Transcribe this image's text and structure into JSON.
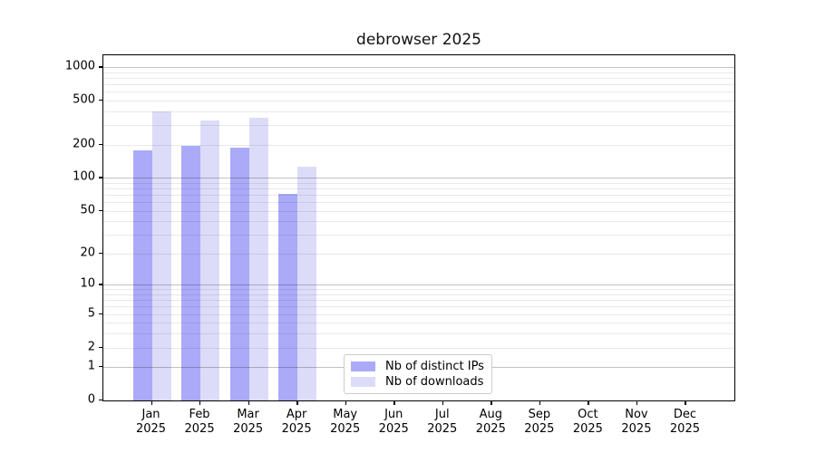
{
  "chart_data": {
    "type": "bar",
    "title": "debrowser 2025",
    "scale": "log10(value+1)",
    "categories": [
      "Jan",
      "Feb",
      "Mar",
      "Apr",
      "May",
      "Jun",
      "Jul",
      "Aug",
      "Sep",
      "Oct",
      "Nov",
      "Dec"
    ],
    "year_label": "2025",
    "series": [
      {
        "name": "Nb of distinct IPs",
        "color": "#aaaaf8",
        "values": [
          178,
          196,
          189,
          72,
          0,
          0,
          0,
          0,
          0,
          0,
          0,
          0
        ]
      },
      {
        "name": "Nb of downloads",
        "color": "#dcdcf9",
        "values": [
          398,
          330,
          352,
          126,
          0,
          0,
          0,
          0,
          0,
          0,
          0,
          0
        ]
      }
    ],
    "ylabel": "",
    "xlabel": "",
    "y_ticks": [
      0,
      1,
      2,
      5,
      10,
      20,
      50,
      100,
      200,
      500,
      1000
    ],
    "ylim": [
      0,
      1280
    ],
    "grid": {
      "on": true,
      "major_values": [
        1,
        10,
        100,
        1000
      ],
      "minor_values": [
        3,
        4,
        6,
        7,
        8,
        9,
        30,
        40,
        60,
        70,
        80,
        90,
        300,
        400,
        600,
        700,
        800,
        900
      ],
      "major_color": "rgba(0,0,0,0.24)",
      "minor_color": "rgba(0,0,0,0.085)"
    },
    "legend": {
      "position": "bottom-center"
    }
  }
}
